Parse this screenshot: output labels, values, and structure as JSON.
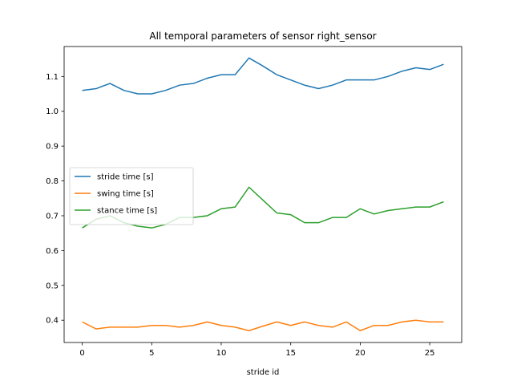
{
  "chart_data": {
    "type": "line",
    "title": "All temporal parameters of sensor right_sensor",
    "xlabel": "stride id",
    "ylabel": "",
    "xlim": [
      -1.3,
      27.3
    ],
    "ylim": [
      0.336,
      1.186
    ],
    "xticks": [
      0,
      5,
      10,
      15,
      20,
      25
    ],
    "yticks": [
      0.4,
      0.5,
      0.6,
      0.7,
      0.8,
      0.9,
      1.0,
      1.1
    ],
    "ytick_labels": [
      "0.4",
      "0.5",
      "0.6",
      "0.7",
      "0.8",
      "0.9",
      "1.0",
      "1.1"
    ],
    "grid": false,
    "legend_position": "center-left",
    "x": [
      0,
      1,
      2,
      3,
      4,
      5,
      6,
      7,
      8,
      9,
      10,
      11,
      12,
      13,
      14,
      15,
      16,
      17,
      18,
      19,
      20,
      21,
      22,
      23,
      24,
      25,
      26
    ],
    "series": [
      {
        "name": "stride time [s]",
        "color": "#1f77b4",
        "values": [
          1.06,
          1.065,
          1.08,
          1.06,
          1.05,
          1.05,
          1.06,
          1.075,
          1.08,
          1.095,
          1.105,
          1.105,
          1.153,
          1.13,
          1.105,
          1.09,
          1.075,
          1.065,
          1.075,
          1.09,
          1.09,
          1.09,
          1.1,
          1.115,
          1.125,
          1.12,
          1.135
        ]
      },
      {
        "name": "swing time [s]",
        "color": "#ff7f0e",
        "values": [
          0.395,
          0.375,
          0.38,
          0.38,
          0.38,
          0.385,
          0.385,
          0.38,
          0.385,
          0.395,
          0.385,
          0.38,
          0.37,
          0.383,
          0.395,
          0.385,
          0.395,
          0.385,
          0.38,
          0.395,
          0.37,
          0.385,
          0.385,
          0.395,
          0.4,
          0.395,
          0.395
        ]
      },
      {
        "name": "stance time [s]",
        "color": "#2ca02c",
        "values": [
          0.665,
          0.69,
          0.7,
          0.68,
          0.67,
          0.665,
          0.675,
          0.695,
          0.695,
          0.7,
          0.72,
          0.725,
          0.782,
          0.745,
          0.708,
          0.703,
          0.68,
          0.68,
          0.695,
          0.695,
          0.72,
          0.705,
          0.715,
          0.72,
          0.725,
          0.725,
          0.74
        ]
      }
    ]
  }
}
